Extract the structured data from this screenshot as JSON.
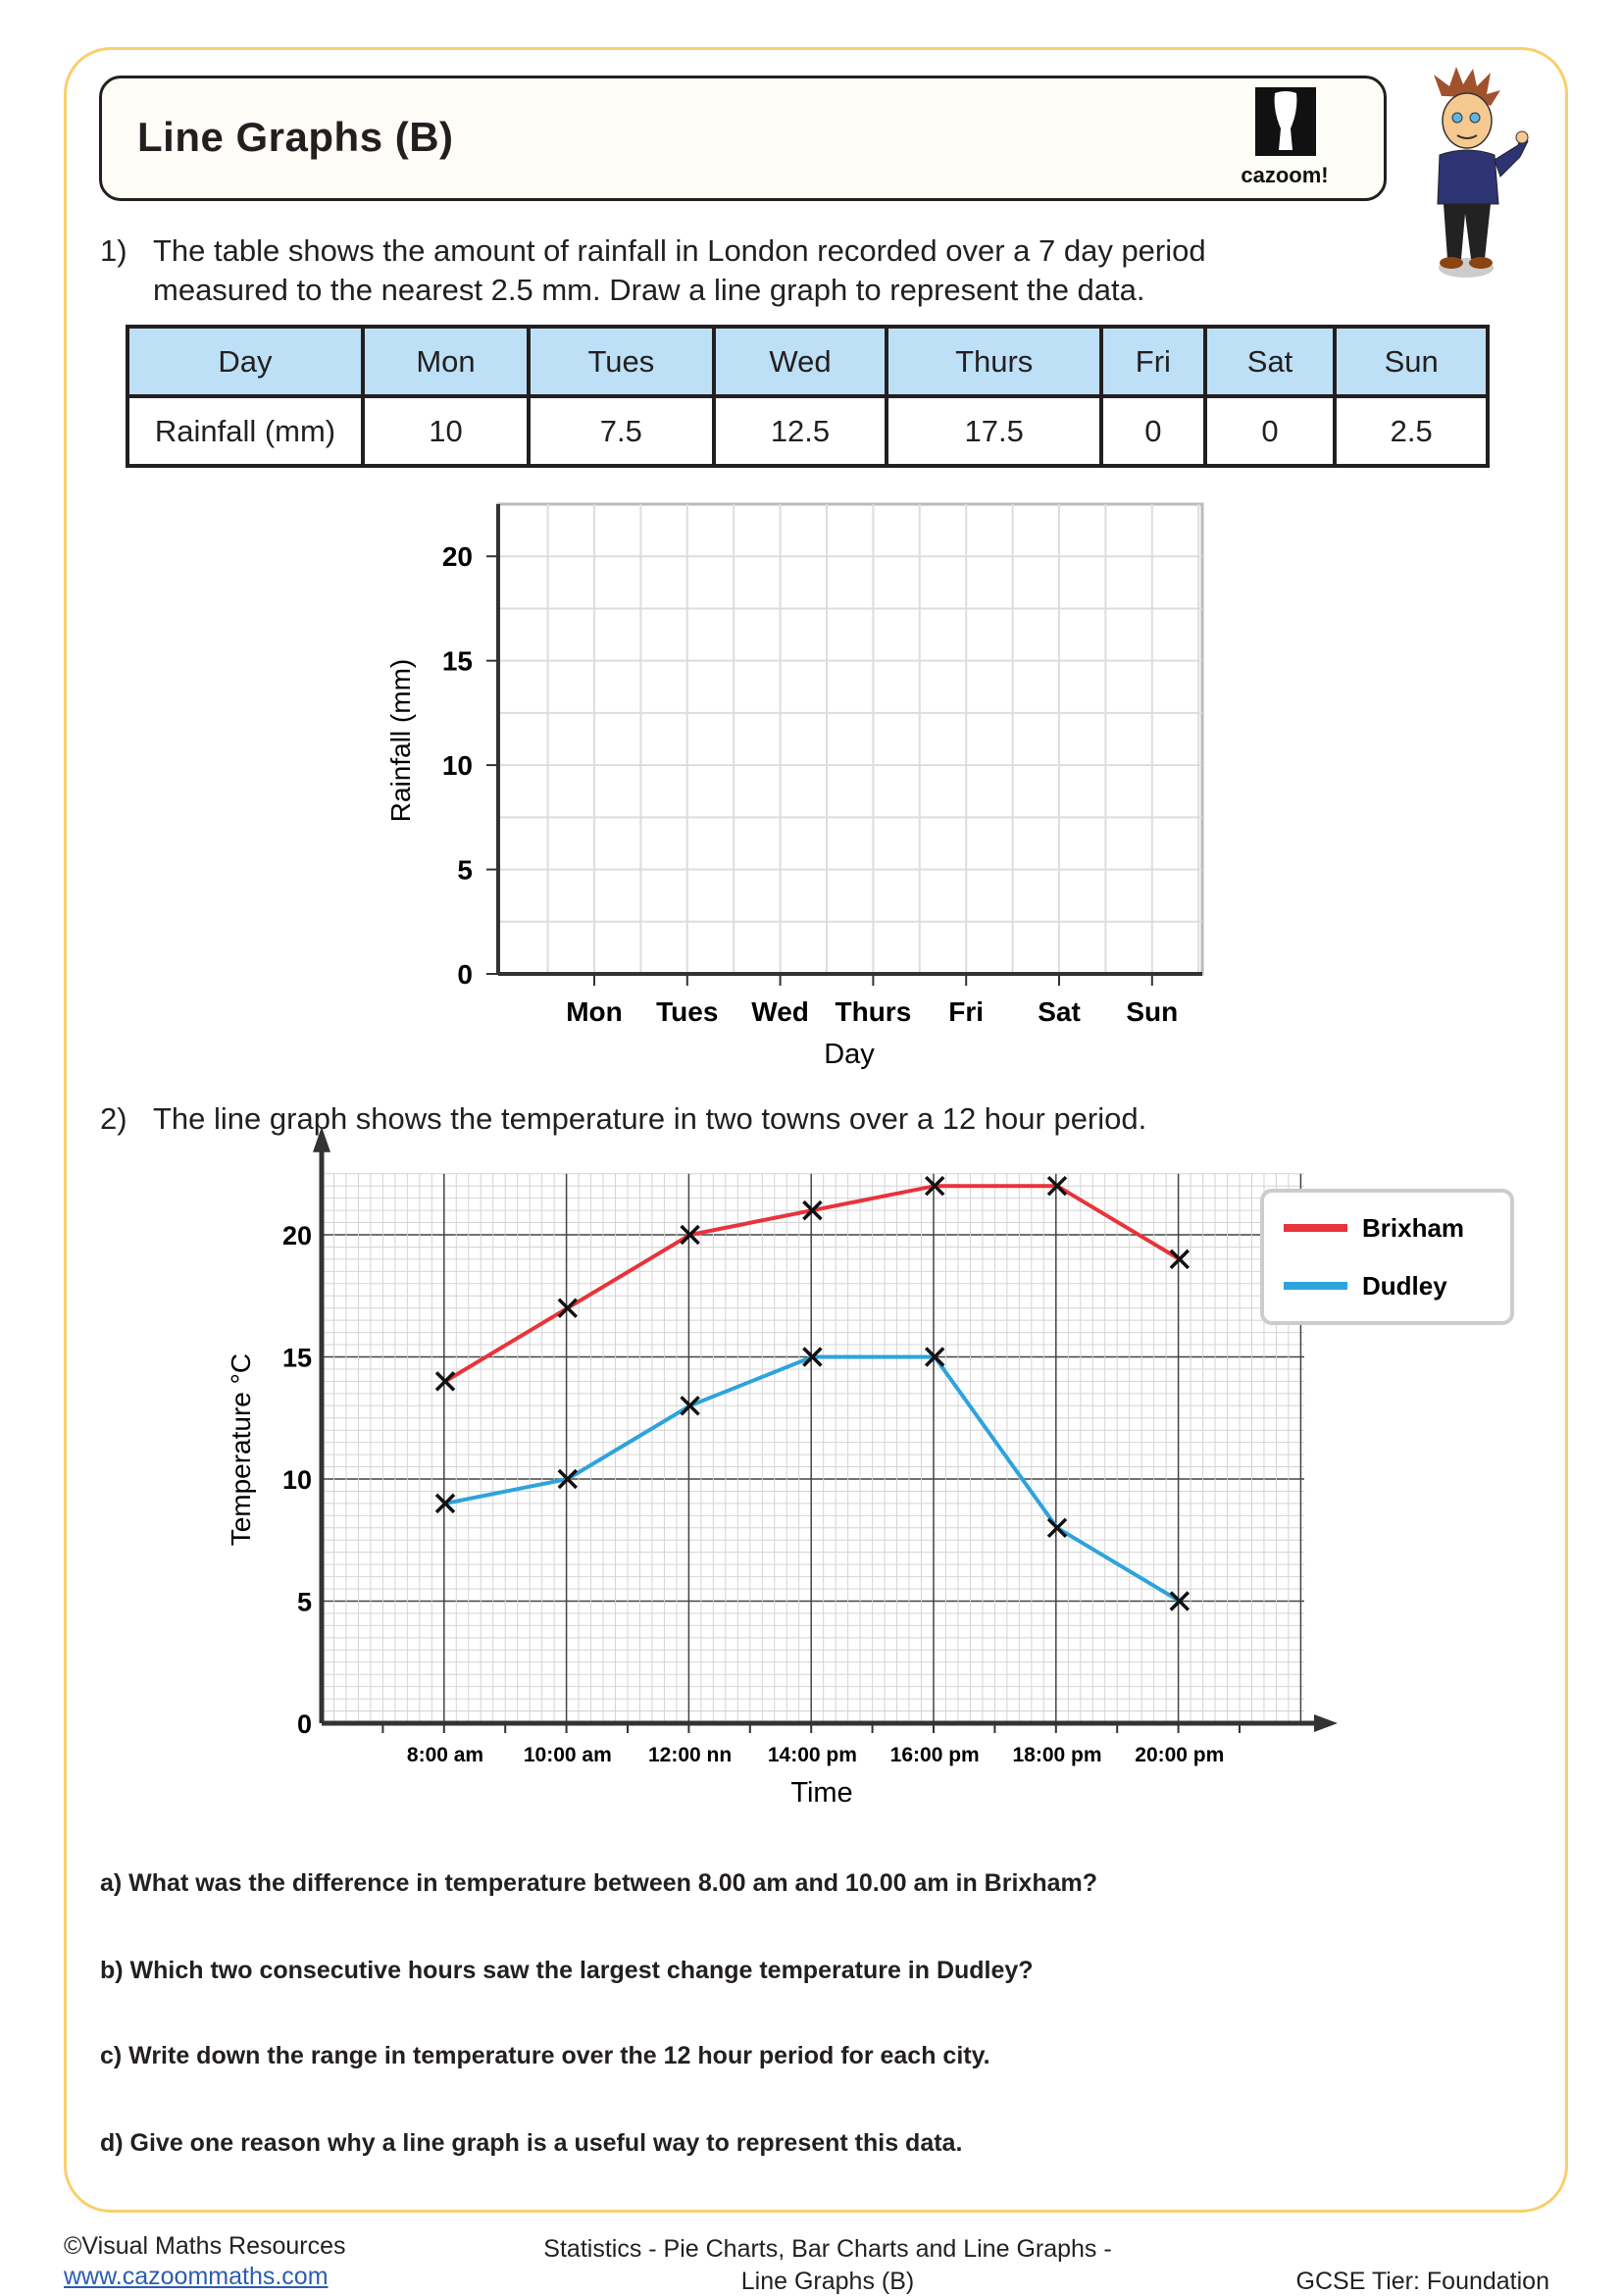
{
  "header": {
    "title": "Line Graphs (B)",
    "logo_text": "cazoom!"
  },
  "q1": {
    "number": "1)",
    "line1": "The table shows the amount of rainfall in London recorded over a 7 day period",
    "line2": "measured to the nearest 2.5 mm. Draw a line graph to represent the data.",
    "table": {
      "header": [
        "Day",
        "Mon",
        "Tues",
        "Wed",
        "Thurs",
        "Fri",
        "Sat",
        "Sun"
      ],
      "row": [
        "Rainfall (mm)",
        "10",
        "7.5",
        "12.5",
        "17.5",
        "0",
        "0",
        "2.5"
      ]
    }
  },
  "q2": {
    "number": "2)",
    "text": "The line graph shows the temperature in two towns over a 12 hour period."
  },
  "chart_data": [
    {
      "type": "line",
      "title": "",
      "xlabel": "Day",
      "ylabel": "Rainfall (mm)",
      "categories": [
        "Mon",
        "Tues",
        "Wed",
        "Thurs",
        "Fri",
        "Sat",
        "Sun"
      ],
      "yticks": [
        0,
        5,
        10,
        15,
        20
      ],
      "ylim": [
        0,
        22.5
      ],
      "grid": true,
      "series": []
    },
    {
      "type": "line",
      "title": "",
      "xlabel": "Time",
      "ylabel": "Temperature  °C",
      "categories": [
        "8:00 am",
        "10:00 am",
        "12:00 nn",
        "14:00 pm",
        "16:00 pm",
        "18:00 pm",
        "20:00 pm"
      ],
      "yticks": [
        0,
        5,
        10,
        15,
        20
      ],
      "ylim": [
        0,
        22.5
      ],
      "grid": true,
      "legend": "top-right",
      "marker": "x",
      "series": [
        {
          "name": "Brixham",
          "color": "#e8333a",
          "values": [
            14,
            17,
            20,
            21,
            22,
            22,
            19
          ]
        },
        {
          "name": "Dudley",
          "color": "#2ea3dc",
          "values": [
            9,
            10,
            13,
            15,
            15,
            8,
            5
          ]
        }
      ]
    }
  ],
  "questions": [
    "a) What was the difference in temperature between 8.00 am and 10.00 am in Brixham?",
    "b) Which two consecutive hours saw the largest change temperature in Dudley?",
    "c) Write down the range in temperature over the 12 hour period for each city.",
    "d) Give one reason why a line graph is a useful way to represent this data."
  ],
  "footer": {
    "copyright": "©Visual Maths Resources",
    "link": "www.cazoommaths.com",
    "topic_line1": "Statistics - Pie Charts, Bar Charts and Line Graphs -",
    "topic_line2": "Line Graphs (B)",
    "tier": "GCSE Tier: Foundation"
  },
  "colors": {
    "frame": "#f8cf6d",
    "table_header": "#bde0f6",
    "brixham": "#e8333a",
    "dudley": "#2ea3dc"
  }
}
